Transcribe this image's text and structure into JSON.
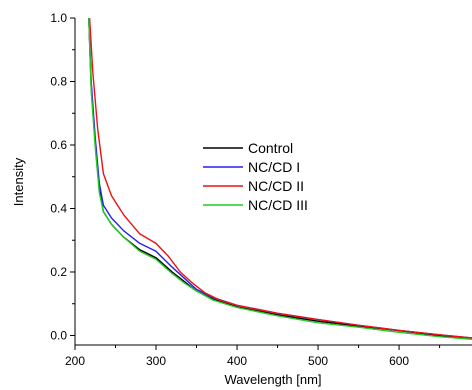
{
  "chart_data": {
    "type": "line",
    "title": "",
    "xlabel": "Wavelength [nm]",
    "ylabel": "Intensity",
    "xlim": [
      200,
      690
    ],
    "ylim": [
      -0.03,
      1.0
    ],
    "x_ticks": [
      200,
      300,
      400,
      500,
      600
    ],
    "y_ticks": [
      0.0,
      0.2,
      0.4,
      0.6,
      0.8,
      1.0
    ],
    "x_tick_labels": [
      "200",
      "300",
      "400",
      "500",
      "600"
    ],
    "y_tick_labels": [
      "0.0",
      "0.2",
      "0.4",
      "0.6",
      "0.8",
      "1.0"
    ],
    "grid": false,
    "legend_position": "center",
    "series": [
      {
        "name": "Control",
        "color": "#000000",
        "points": [
          [
            217,
            1.0
          ],
          [
            220,
            0.78
          ],
          [
            225,
            0.6
          ],
          [
            230,
            0.46
          ],
          [
            235,
            0.39
          ],
          [
            245,
            0.35
          ],
          [
            260,
            0.31
          ],
          [
            280,
            0.27
          ],
          [
            300,
            0.245
          ],
          [
            320,
            0.2
          ],
          [
            335,
            0.17
          ],
          [
            350,
            0.14
          ],
          [
            370,
            0.115
          ],
          [
            400,
            0.09
          ],
          [
            450,
            0.065
          ],
          [
            500,
            0.045
          ],
          [
            550,
            0.03
          ],
          [
            600,
            0.015
          ],
          [
            650,
            0.0
          ],
          [
            690,
            -0.01
          ]
        ]
      },
      {
        "name": "NC/CD I",
        "color": "#2222ee",
        "points": [
          [
            217,
            1.0
          ],
          [
            220,
            0.8
          ],
          [
            225,
            0.62
          ],
          [
            230,
            0.48
          ],
          [
            235,
            0.41
          ],
          [
            245,
            0.37
          ],
          [
            260,
            0.33
          ],
          [
            280,
            0.29
          ],
          [
            300,
            0.265
          ],
          [
            320,
            0.215
          ],
          [
            335,
            0.18
          ],
          [
            350,
            0.145
          ],
          [
            370,
            0.12
          ],
          [
            400,
            0.095
          ],
          [
            450,
            0.07
          ],
          [
            500,
            0.05
          ],
          [
            550,
            0.032
          ],
          [
            600,
            0.016
          ],
          [
            650,
            0.002
          ],
          [
            690,
            -0.008
          ]
        ]
      },
      {
        "name": "NC/CD II",
        "color": "#ee1111",
        "points": [
          [
            218,
            1.0
          ],
          [
            222,
            0.83
          ],
          [
            228,
            0.65
          ],
          [
            235,
            0.51
          ],
          [
            245,
            0.44
          ],
          [
            260,
            0.38
          ],
          [
            280,
            0.32
          ],
          [
            300,
            0.29
          ],
          [
            315,
            0.25
          ],
          [
            330,
            0.2
          ],
          [
            345,
            0.165
          ],
          [
            360,
            0.135
          ],
          [
            380,
            0.11
          ],
          [
            400,
            0.095
          ],
          [
            450,
            0.07
          ],
          [
            500,
            0.05
          ],
          [
            550,
            0.032
          ],
          [
            600,
            0.016
          ],
          [
            650,
            0.002
          ],
          [
            690,
            -0.008
          ]
        ]
      },
      {
        "name": "NC/CD III",
        "color": "#22cc22",
        "points": [
          [
            217,
            1.0
          ],
          [
            220,
            0.77
          ],
          [
            225,
            0.59
          ],
          [
            230,
            0.45
          ],
          [
            235,
            0.39
          ],
          [
            245,
            0.35
          ],
          [
            260,
            0.31
          ],
          [
            280,
            0.265
          ],
          [
            300,
            0.24
          ],
          [
            320,
            0.195
          ],
          [
            335,
            0.165
          ],
          [
            350,
            0.14
          ],
          [
            370,
            0.112
          ],
          [
            400,
            0.088
          ],
          [
            450,
            0.062
          ],
          [
            500,
            0.04
          ],
          [
            550,
            0.026
          ],
          [
            600,
            0.01
          ],
          [
            650,
            -0.004
          ],
          [
            690,
            -0.012
          ]
        ]
      }
    ]
  }
}
